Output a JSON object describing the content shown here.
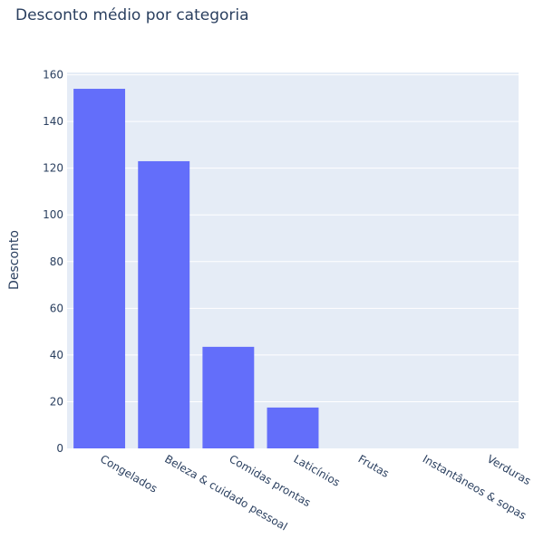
{
  "chart_data": {
    "type": "bar",
    "title": "Desconto médio por categoria",
    "xlabel": "",
    "ylabel": "Desconto",
    "categories": [
      "Congelados",
      "Beleza & cuidado pessoal",
      "Comidas prontas",
      "Laticínios",
      "Frutas",
      "Instantâneos & sopas",
      "Verduras"
    ],
    "values": [
      154,
      123,
      43.5,
      17.5,
      0,
      0,
      0
    ],
    "ylim": [
      0,
      161
    ],
    "yticks": [
      0,
      20,
      40,
      60,
      80,
      100,
      120,
      140,
      160
    ],
    "grid": true,
    "colors": {
      "bar": "#636efa",
      "plot_bg": "#e5ecf6",
      "grid": "#ffffff",
      "text": "#2a3f5f"
    }
  }
}
